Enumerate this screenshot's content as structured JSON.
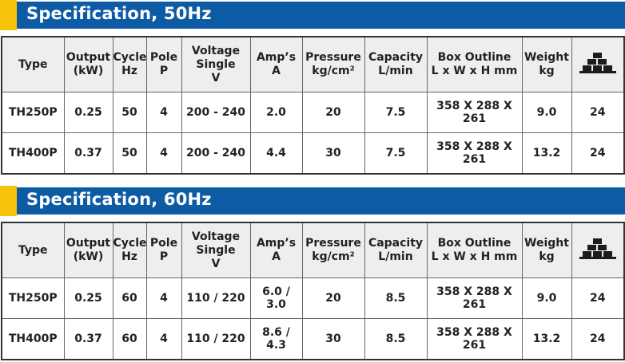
{
  "sections": [
    {
      "title": "Specification, 50Hz",
      "headers": {
        "type": "Type",
        "output": [
          "Output",
          "(kW)"
        ],
        "cycle": [
          "Cycle",
          "Hz"
        ],
        "pole": [
          "Pole",
          "P"
        ],
        "voltage": [
          "Voltage",
          "Single",
          "V"
        ],
        "amps": [
          "Amp’s",
          "A"
        ],
        "pressure": [
          "Pressure",
          "kg/cm²"
        ],
        "capacity": [
          "Capacity",
          "L/min"
        ],
        "box": [
          "Box Outline",
          "L x W x H mm"
        ],
        "weight": [
          "Weight",
          "kg"
        ],
        "pallet_icon": "pallet-stack-icon"
      },
      "rows": [
        [
          "TH250P",
          "0.25",
          "50",
          "4",
          "200 - 240",
          "2.0",
          "20",
          "7.5",
          "358 X 288 X 261",
          "9.0",
          "24"
        ],
        [
          "TH400P",
          "0.37",
          "50",
          "4",
          "200 - 240",
          "4.4",
          "30",
          "7.5",
          "358 X 288 X 261",
          "13.2",
          "24"
        ]
      ]
    },
    {
      "title": "Specification, 60Hz",
      "headers": {
        "type": "Type",
        "output": [
          "Output",
          "(kW)"
        ],
        "cycle": [
          "Cycle",
          "Hz"
        ],
        "pole": [
          "Pole",
          "P"
        ],
        "voltage": [
          "Voltage",
          "Single",
          "V"
        ],
        "amps": [
          "Amp’s",
          "A"
        ],
        "pressure": [
          "Pressure",
          "kg/cm²"
        ],
        "capacity": [
          "Capacity",
          "L/min"
        ],
        "box": [
          "Box Outline",
          "L x W x H mm"
        ],
        "weight": [
          "Weight",
          "kg"
        ],
        "pallet_icon": "pallet-stack-icon"
      },
      "rows": [
        [
          "TH250P",
          "0.25",
          "60",
          "4",
          "110 / 220",
          "6.0 / 3.0",
          "20",
          "8.5",
          "358 X 288 X 261",
          "9.0",
          "24"
        ],
        [
          "TH400P",
          "0.37",
          "60",
          "4",
          "110 / 220",
          "8.6 / 4.3",
          "30",
          "8.5",
          "358 X 288 X 261",
          "13.2",
          "24"
        ]
      ]
    }
  ],
  "colors": {
    "banner": "#0d5aa5",
    "accent": "#f6c20a",
    "header_bg": "#eeeeee"
  }
}
